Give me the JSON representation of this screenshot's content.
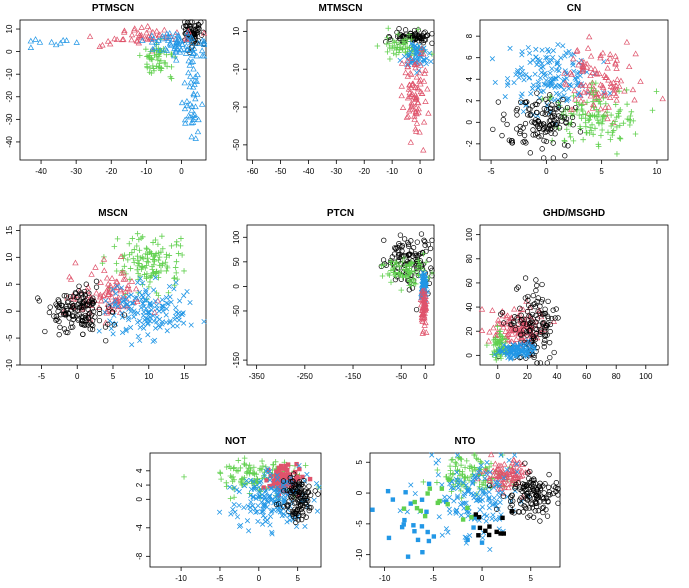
{
  "colors": {
    "g1": "#000000",
    "g2": "#DF536B",
    "g3": "#61D04F",
    "g4": "#2297E6"
  },
  "chart_data": [
    {
      "type": "scatter",
      "title": "PTMSCN",
      "xticks": [
        -40,
        -30,
        -20,
        -10,
        0
      ],
      "xlim": [
        -46,
        7
      ],
      "yticks": [
        10,
        0,
        -10,
        -20,
        -30,
        -40
      ],
      "ylim": [
        -48,
        14
      ],
      "groups": [
        {
          "color": "g1",
          "pch": "circle",
          "cx": 3,
          "cy": 8,
          "sx": 1.2,
          "sy": 3,
          "n": 70
        },
        {
          "color": "g2",
          "pch": "triangle",
          "cx": -12,
          "cy": 6,
          "sx": 7,
          "sy": 2.5,
          "n": 50
        },
        {
          "color": "g3",
          "pch": "plus",
          "cx": -6,
          "cy": -3,
          "sx": 2.5,
          "sy": 3.5,
          "n": 60
        },
        {
          "color": "g4",
          "pch": "triangle",
          "cx": -2,
          "cy": 3,
          "sx": 4,
          "sy": 2.5,
          "n": 70
        },
        {
          "color": "g4",
          "pch": "triangle",
          "cx": 3,
          "cy": -18,
          "sx": 1.2,
          "sy": 10,
          "n": 45
        },
        {
          "color": "g4",
          "pch": "triangle",
          "cx": -36,
          "cy": 4,
          "sx": 6,
          "sy": 1,
          "n": 10
        }
      ]
    },
    {
      "type": "scatter",
      "title": "MTMSCN",
      "xticks": [
        -60,
        -50,
        -40,
        -30,
        -20,
        -10,
        0
      ],
      "xlim": [
        -62,
        5
      ],
      "yticks": [
        10,
        -10,
        -30,
        -50
      ],
      "ylim": [
        -58,
        16
      ],
      "groups": [
        {
          "color": "g1",
          "pch": "circle",
          "cx": -3,
          "cy": 7,
          "sx": 4,
          "sy": 1.5,
          "n": 70
        },
        {
          "color": "g3",
          "pch": "plus",
          "cx": -6,
          "cy": 2,
          "sx": 4,
          "sy": 3,
          "n": 60
        },
        {
          "color": "g4",
          "pch": "cross",
          "cx": -1,
          "cy": -3,
          "sx": 2,
          "sy": 4,
          "n": 60
        },
        {
          "color": "g2",
          "pch": "triangle",
          "cx": -2,
          "cy": -25,
          "sx": 2,
          "sy": 12,
          "n": 80
        }
      ]
    },
    {
      "type": "scatter",
      "title": "CN",
      "xticks": [
        -5,
        0,
        5,
        10
      ],
      "xlim": [
        -6,
        11
      ],
      "yticks": [
        8,
        6,
        4,
        2,
        0,
        -2
      ],
      "ylim": [
        -3.5,
        9.5
      ],
      "groups": [
        {
          "color": "g4",
          "pch": "cross",
          "cx": 0.5,
          "cy": 4,
          "sx": 2,
          "sy": 1.5,
          "n": 160
        },
        {
          "color": "g2",
          "pch": "triangle",
          "cx": 4.5,
          "cy": 3.5,
          "sx": 1.5,
          "sy": 1.5,
          "n": 110
        },
        {
          "color": "g3",
          "pch": "plus",
          "cx": 4,
          "cy": 0.5,
          "sx": 2,
          "sy": 1.2,
          "n": 130
        },
        {
          "color": "g1",
          "pch": "circle",
          "cx": -0.5,
          "cy": -0.2,
          "sx": 1.5,
          "sy": 1.3,
          "n": 130
        }
      ]
    },
    {
      "type": "scatter",
      "title": "MSCN",
      "xticks": [
        -5,
        0,
        5,
        10,
        15
      ],
      "xlim": [
        -8,
        18
      ],
      "yticks": [
        15,
        10,
        5,
        0,
        -5,
        -10
      ],
      "ylim": [
        -10,
        16
      ],
      "groups": [
        {
          "color": "g3",
          "pch": "plus",
          "cx": 10,
          "cy": 9,
          "sx": 2.5,
          "sy": 2.5,
          "n": 130
        },
        {
          "color": "g2",
          "pch": "triangle",
          "cx": 4,
          "cy": 3,
          "sx": 2.5,
          "sy": 2.5,
          "n": 100
        },
        {
          "color": "g4",
          "pch": "cross",
          "cx": 10,
          "cy": 0,
          "sx": 3,
          "sy": 2.5,
          "n": 150
        },
        {
          "color": "g1",
          "pch": "circle",
          "cx": 0,
          "cy": 0,
          "sx": 2.2,
          "sy": 2,
          "n": 150
        }
      ]
    },
    {
      "type": "scatter",
      "title": "PTCN",
      "xticks": [
        -350,
        -250,
        -150,
        -50,
        0
      ],
      "xlim": [
        -370,
        18
      ],
      "yticks": [
        100,
        50,
        0,
        -50,
        -150
      ],
      "ylim": [
        -160,
        125
      ],
      "groups": [
        {
          "color": "g1",
          "pch": "circle",
          "cx": -30,
          "cy": 55,
          "sx": 28,
          "sy": 25,
          "n": 120
        },
        {
          "color": "g3",
          "pch": "plus",
          "cx": -35,
          "cy": 30,
          "sx": 25,
          "sy": 15,
          "n": 80
        },
        {
          "color": "g4",
          "pch": "cross",
          "cx": -3,
          "cy": 0,
          "sx": 3,
          "sy": 15,
          "n": 80
        },
        {
          "color": "g2",
          "pch": "triangle",
          "cx": -3,
          "cy": -45,
          "sx": 3,
          "sy": 25,
          "n": 60
        }
      ]
    },
    {
      "type": "scatter",
      "title": "GHD/MSGHD",
      "xticks": [
        0,
        20,
        40,
        60,
        80,
        100
      ],
      "xlim": [
        -12,
        115
      ],
      "yticks": [
        100,
        80,
        60,
        40,
        20,
        0
      ],
      "ylim": [
        -8,
        108
      ],
      "groups": [
        {
          "color": "g2",
          "pch": "triangle",
          "cx": 14,
          "cy": 23,
          "sx": 9,
          "sy": 8,
          "n": 120
        },
        {
          "color": "g1",
          "pch": "circle",
          "cx": 24,
          "cy": 22,
          "sx": 8,
          "sy": 16,
          "n": 140
        },
        {
          "color": "g3",
          "pch": "plus",
          "cx": 2,
          "cy": 8,
          "sx": 3,
          "sy": 5,
          "n": 70
        },
        {
          "color": "g4",
          "pch": "cross",
          "cx": 14,
          "cy": 4,
          "sx": 6,
          "sy": 3,
          "n": 100
        }
      ]
    },
    {
      "type": "scatter",
      "title": "NOT",
      "xticks": [
        -10,
        -5,
        0,
        5
      ],
      "xlim": [
        -14,
        8
      ],
      "yticks": [
        4,
        2,
        0,
        -4,
        -8
      ],
      "ylim": [
        -9.5,
        6.5
      ],
      "groups": [
        {
          "color": "g3",
          "pch": "plus",
          "cx": 0,
          "cy": 3,
          "sx": 2.5,
          "sy": 1.2,
          "n": 130
        },
        {
          "color": "g2",
          "pch": "square",
          "cx": 3.5,
          "cy": 2.8,
          "sx": 1.2,
          "sy": 1.2,
          "n": 80
        },
        {
          "color": "g4",
          "pch": "cross",
          "cx": 1.5,
          "cy": 0,
          "sx": 2.5,
          "sy": 2,
          "n": 170
        },
        {
          "color": "g1",
          "pch": "circle",
          "cx": 5,
          "cy": 0,
          "sx": 1,
          "sy": 1.5,
          "n": 110
        }
      ]
    },
    {
      "type": "scatter",
      "title": "NTO",
      "xticks": [
        -10,
        -5,
        0,
        5
      ],
      "xlim": [
        -11.5,
        8
      ],
      "yticks": [
        5,
        0,
        -5,
        -10
      ],
      "ylim": [
        -12,
        6.5
      ],
      "groups": [
        {
          "color": "g3",
          "pch": "plus",
          "cx": -1,
          "cy": 3,
          "sx": 2,
          "sy": 1.5,
          "n": 110
        },
        {
          "color": "g2",
          "pch": "triangle",
          "cx": 2.5,
          "cy": 3,
          "sx": 1.2,
          "sy": 1.2,
          "n": 90
        },
        {
          "color": "g4",
          "pch": "cross",
          "cx": -0.5,
          "cy": -0.5,
          "sx": 2.5,
          "sy": 3,
          "n": 150
        },
        {
          "color": "g1",
          "pch": "circle",
          "cx": 5,
          "cy": 0,
          "sx": 1.3,
          "sy": 1.8,
          "n": 130
        },
        {
          "color": "g4",
          "pch": "square",
          "cx": -6,
          "cy": -4,
          "sx": 3,
          "sy": 3,
          "n": 25
        },
        {
          "color": "g3",
          "pch": "square",
          "cx": -5,
          "cy": -1,
          "sx": 3,
          "sy": 2,
          "n": 15
        },
        {
          "color": "g1",
          "pch": "square",
          "cx": 1.5,
          "cy": -5,
          "sx": 1.5,
          "sy": 2,
          "n": 12
        }
      ]
    }
  ]
}
